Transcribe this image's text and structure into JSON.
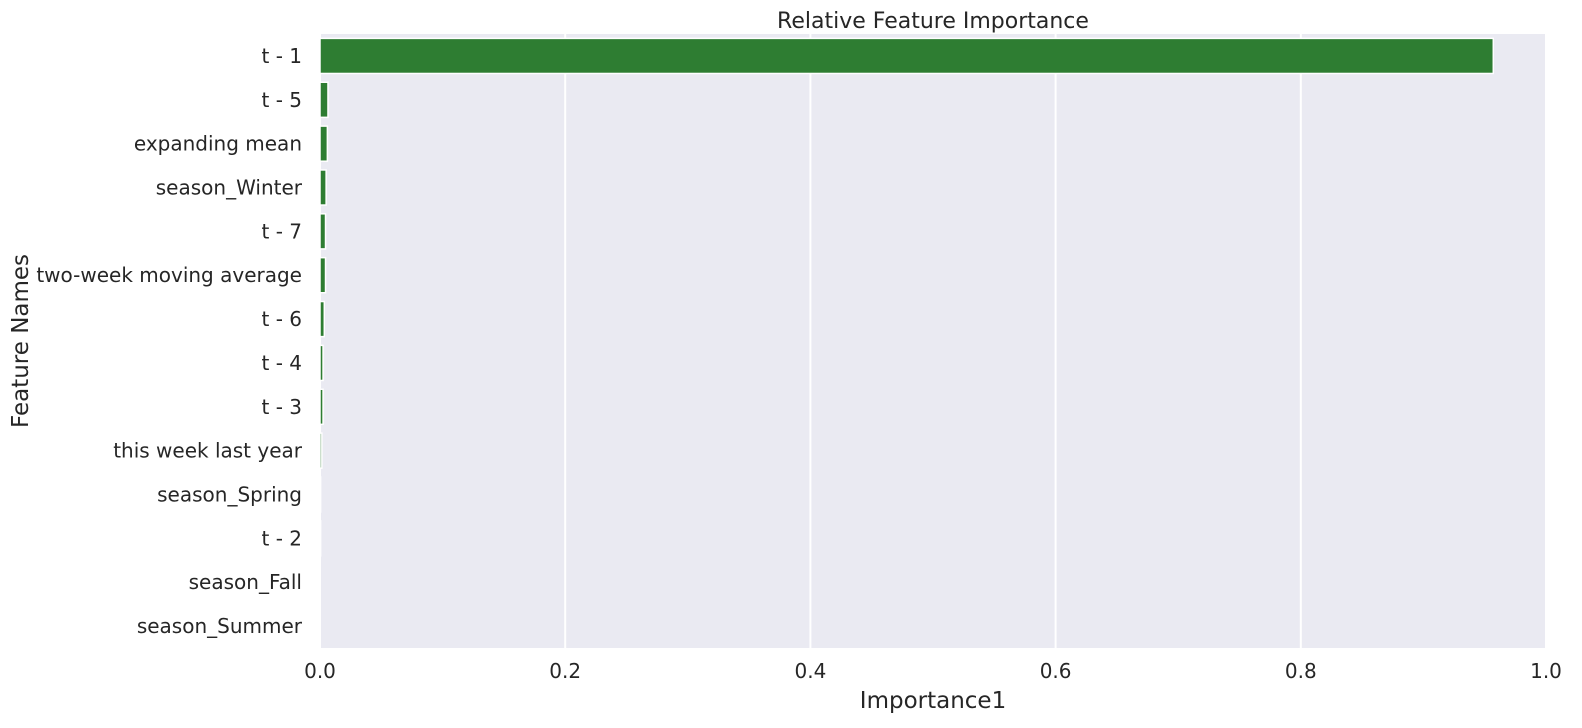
{
  "chart_data": {
    "type": "bar",
    "orientation": "horizontal",
    "title": "Relative Feature Importance",
    "xlabel": "Importance1",
    "ylabel": "Feature Names",
    "xlim": [
      0,
      1.0
    ],
    "xticks": [
      "0.0",
      "0.2",
      "0.4",
      "0.6",
      "0.8",
      "1.0"
    ],
    "xtick_values": [
      0.0,
      0.2,
      0.4,
      0.6,
      0.8,
      1.0
    ],
    "grid": true,
    "background": "#eaeaf2",
    "grid_color": "#ffffff",
    "bar_color": "#2e7d32",
    "categories": [
      "t - 1",
      "t - 5",
      "expanding mean",
      "season_Winter",
      "t - 7",
      "two-week moving average",
      "t - 6",
      "t - 4",
      "t - 3",
      "this week last year",
      "season_Spring",
      "t - 2",
      "season_Fall",
      "season_Summer"
    ],
    "values": [
      0.957,
      0.0065,
      0.006,
      0.005,
      0.0045,
      0.0045,
      0.0035,
      0.0025,
      0.0025,
      0.0015,
      0.0005,
      0.0005,
      0.0002,
      0.0001
    ]
  }
}
